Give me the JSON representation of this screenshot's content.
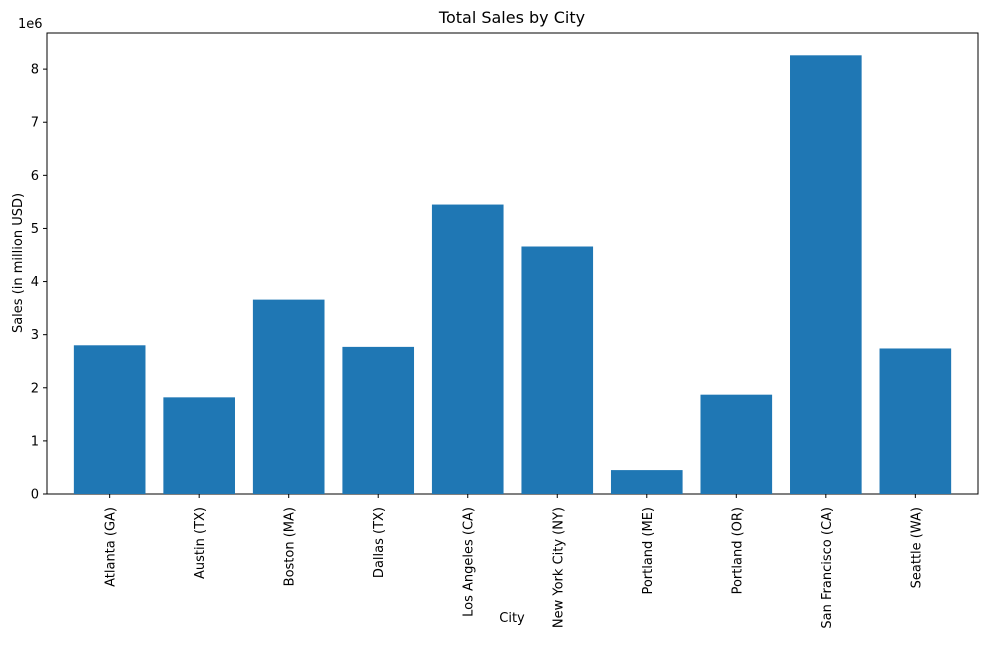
{
  "chart_data": {
    "type": "bar",
    "title": "Total Sales by City",
    "xlabel": "City",
    "ylabel": "Sales (in million USD)",
    "y_offset_label": "1e6",
    "categories": [
      "Atlanta (GA)",
      "Austin (TX)",
      "Boston (MA)",
      "Dallas (TX)",
      "Los Angeles (CA)",
      "New York City (NY)",
      "Portland (ME)",
      "Portland (OR)",
      "San Francisco (CA)",
      "Seattle (WA)"
    ],
    "values": [
      2800000,
      1820000,
      3660000,
      2770000,
      5450000,
      4660000,
      450000,
      1870000,
      8260000,
      2740000
    ],
    "ylim": [
      0,
      8680000
    ],
    "yticks": [
      0,
      1,
      2,
      3,
      4,
      5,
      6,
      7,
      8
    ],
    "bar_color": "#1f77b4",
    "grid": false
  }
}
